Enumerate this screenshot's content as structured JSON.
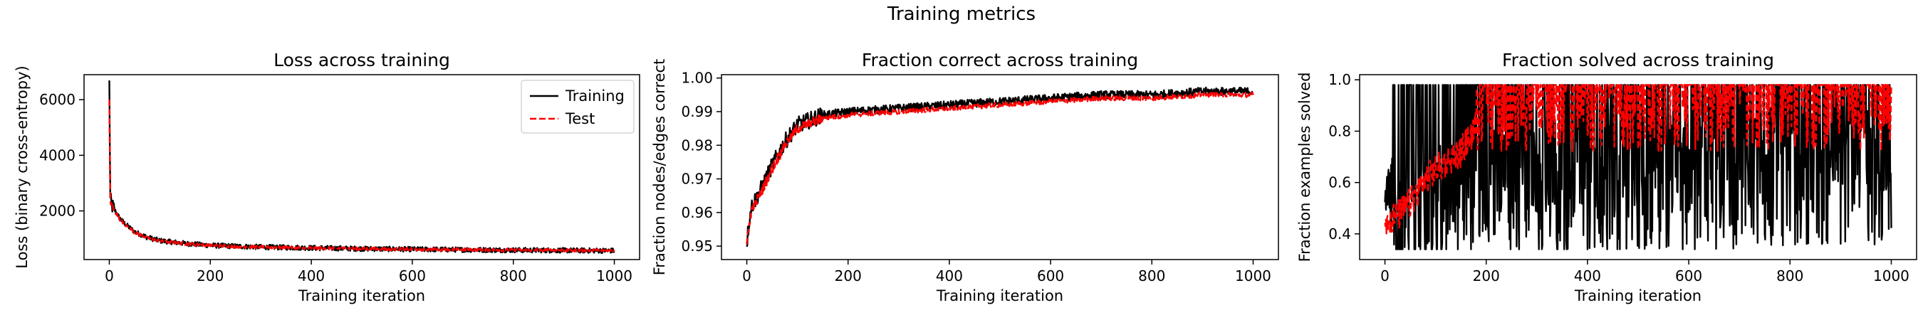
{
  "figure": {
    "suptitle": "Training metrics"
  },
  "chart_data": [
    {
      "type": "line",
      "title": "Loss across training",
      "xlabel": "Training iteration",
      "ylabel": "Loss (binary cross-entropy)",
      "xlim": [
        -50,
        1050
      ],
      "ylim": [
        250,
        6900
      ],
      "xticks": [
        0,
        200,
        400,
        600,
        800,
        1000
      ],
      "yticks": [
        2000,
        4000,
        6000
      ],
      "legend": "top-right",
      "series": [
        {
          "name": "Training",
          "color": "#000000",
          "dash": "solid",
          "x": [
            0,
            2,
            5,
            10,
            20,
            30,
            50,
            75,
            100,
            150,
            200,
            300,
            400,
            500,
            600,
            700,
            800,
            900,
            1000
          ],
          "values": [
            6600,
            2400,
            2200,
            2050,
            1750,
            1550,
            1250,
            1050,
            930,
            830,
            760,
            700,
            670,
            640,
            620,
            605,
            590,
            580,
            570
          ]
        },
        {
          "name": "Test",
          "color": "#ff0000",
          "dash": "dashed",
          "x": [
            0,
            2,
            5,
            10,
            20,
            30,
            50,
            75,
            100,
            150,
            200,
            300,
            400,
            500,
            600,
            700,
            800,
            900,
            1000
          ],
          "values": [
            5900,
            2350,
            2150,
            2000,
            1720,
            1520,
            1230,
            1030,
            920,
            820,
            755,
            695,
            665,
            640,
            620,
            605,
            592,
            582,
            575
          ]
        }
      ]
    },
    {
      "type": "line",
      "title": "Fraction correct across training",
      "xlabel": "Training iteration",
      "ylabel": "Fraction nodes/edges correct",
      "xlim": [
        -50,
        1050
      ],
      "ylim": [
        0.946,
        1.001
      ],
      "xticks": [
        0,
        200,
        400,
        600,
        800,
        1000
      ],
      "yticks": [
        0.95,
        0.96,
        0.97,
        0.98,
        0.99,
        1.0
      ],
      "series": [
        {
          "name": "Training",
          "color": "#000000",
          "dash": "solid",
          "x": [
            0,
            5,
            10,
            25,
            50,
            75,
            100,
            150,
            200,
            300,
            400,
            500,
            600,
            700,
            800,
            900,
            1000
          ],
          "values": [
            0.951,
            0.958,
            0.962,
            0.966,
            0.974,
            0.981,
            0.986,
            0.989,
            0.99,
            0.991,
            0.992,
            0.993,
            0.994,
            0.995,
            0.995,
            0.996,
            0.996
          ]
        },
        {
          "name": "Test",
          "color": "#ff0000",
          "dash": "dashed",
          "x": [
            0,
            5,
            10,
            25,
            50,
            75,
            100,
            150,
            200,
            300,
            400,
            500,
            600,
            700,
            800,
            900,
            1000
          ],
          "values": [
            0.95,
            0.957,
            0.961,
            0.965,
            0.973,
            0.98,
            0.985,
            0.988,
            0.989,
            0.99,
            0.991,
            0.992,
            0.993,
            0.994,
            0.994,
            0.995,
            0.995
          ]
        }
      ]
    },
    {
      "type": "line",
      "title": "Fraction solved across training",
      "xlabel": "Training iteration",
      "ylabel": "Fraction examples solved",
      "xlim": [
        -50,
        1050
      ],
      "ylim": [
        0.3,
        1.02
      ],
      "xticks": [
        0,
        200,
        400,
        600,
        800,
        1000
      ],
      "yticks": [
        0.4,
        0.6,
        0.8,
        1.0
      ],
      "series": [
        {
          "name": "Training",
          "color": "#000000",
          "dash": "solid",
          "x": [
            0,
            25,
            50,
            75,
            100,
            150,
            200,
            300,
            400,
            500,
            600,
            700,
            800,
            900,
            1000
          ],
          "values": [
            0.55,
            0.6,
            0.65,
            0.7,
            0.74,
            0.78,
            0.82,
            0.84,
            0.86,
            0.87,
            0.88,
            0.89,
            0.9,
            0.9,
            0.9
          ]
        },
        {
          "name": "Test",
          "color": "#ff0000",
          "dash": "dashed",
          "x": [
            0,
            25,
            50,
            75,
            100,
            150,
            200,
            300,
            400,
            500,
            600,
            700,
            800,
            900,
            1000
          ],
          "values": [
            0.45,
            0.47,
            0.52,
            0.6,
            0.65,
            0.72,
            0.88,
            0.92,
            0.93,
            0.94,
            0.94,
            0.95,
            0.95,
            0.95,
            0.95
          ]
        }
      ]
    }
  ]
}
